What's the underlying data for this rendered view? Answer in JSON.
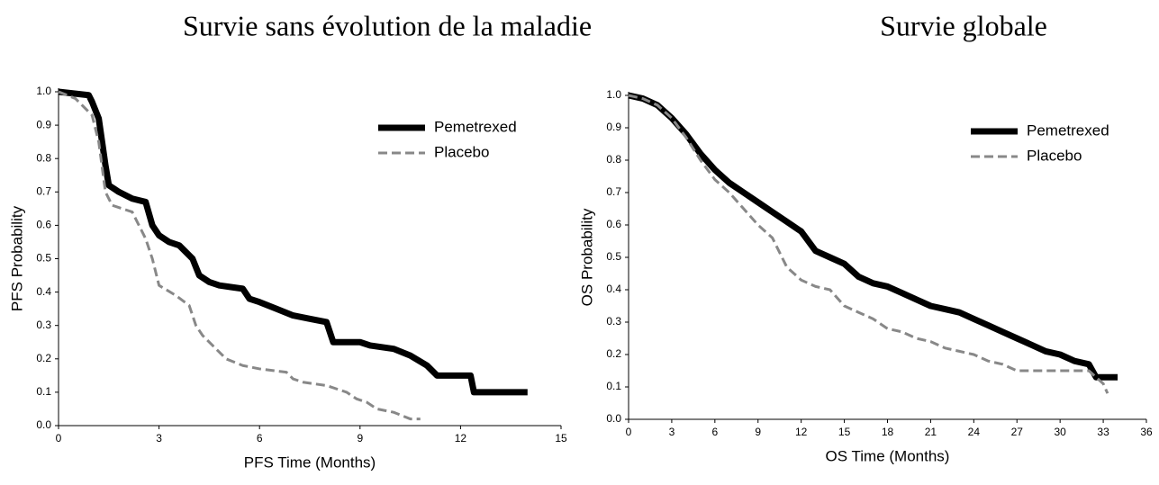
{
  "chart_data": [
    {
      "type": "line",
      "title": "Survie sans évolution de la maladie",
      "x_label": "PFS Time (Months)",
      "y_label": "PFS Probability",
      "xlim": [
        0,
        15
      ],
      "xticks": [
        0,
        3,
        6,
        9,
        12,
        15
      ],
      "ylim": [
        0,
        1
      ],
      "yticks": [
        {
          "value": 0,
          "label": "0.0"
        },
        0.1,
        0.2,
        0.3,
        0.4,
        0.5,
        0.6,
        0.7,
        0.8,
        0.9,
        {
          "value": 1,
          "label": "1.0"
        }
      ],
      "legend": "upper right",
      "series": [
        {
          "name": "Pemetrexed",
          "color": "#000000",
          "x": [
            0,
            0.9,
            1.0,
            1.2,
            1.3,
            1.4,
            1.5,
            1.8,
            2.2,
            2.6,
            2.8,
            3.0,
            3.3,
            3.6,
            4.0,
            4.2,
            4.5,
            4.8,
            5.5,
            5.7,
            6.0,
            6.5,
            7.0,
            7.5,
            8.0,
            8.2,
            9.0,
            9.3,
            10.0,
            10.5,
            11.0,
            11.3,
            12.3,
            12.4,
            14.0
          ],
          "values": [
            1.0,
            0.99,
            0.97,
            0.92,
            0.85,
            0.78,
            0.72,
            0.7,
            0.68,
            0.67,
            0.6,
            0.57,
            0.55,
            0.54,
            0.5,
            0.45,
            0.43,
            0.42,
            0.41,
            0.38,
            0.37,
            0.35,
            0.33,
            0.32,
            0.31,
            0.25,
            0.25,
            0.24,
            0.23,
            0.21,
            0.18,
            0.15,
            0.15,
            0.1,
            0.1
          ]
        },
        {
          "name": "Placebo",
          "color": "#888888",
          "x": [
            0,
            0.5,
            1.0,
            1.2,
            1.4,
            1.6,
            2.2,
            2.6,
            2.8,
            3.0,
            3.5,
            3.9,
            4.1,
            4.3,
            4.6,
            5.0,
            5.5,
            6.0,
            6.8,
            7.0,
            7.3,
            8.0,
            8.6,
            8.9,
            9.2,
            9.5,
            10.0,
            10.5,
            10.8
          ],
          "values": [
            1.0,
            0.98,
            0.93,
            0.85,
            0.7,
            0.66,
            0.64,
            0.56,
            0.5,
            0.42,
            0.39,
            0.36,
            0.3,
            0.27,
            0.24,
            0.2,
            0.18,
            0.17,
            0.16,
            0.14,
            0.13,
            0.12,
            0.1,
            0.08,
            0.07,
            0.05,
            0.04,
            0.02,
            0.02
          ]
        }
      ]
    },
    {
      "type": "line",
      "title": "Survie globale",
      "x_label": "OS Time (Months)",
      "y_label": "OS Probability",
      "xlim": [
        0,
        36
      ],
      "xticks": [
        0,
        3,
        6,
        9,
        12,
        15,
        18,
        21,
        24,
        27,
        30,
        33,
        36
      ],
      "ylim": [
        0,
        1
      ],
      "yticks": [
        {
          "value": 0,
          "label": "0.0"
        },
        0.1,
        0.2,
        0.3,
        0.4,
        0.5,
        0.6,
        0.7,
        0.8,
        0.9,
        {
          "value": 1,
          "label": "1.0"
        }
      ],
      "legend": "upper right",
      "series": [
        {
          "name": "Pemetrexed",
          "color": "#000000",
          "x": [
            0,
            1,
            2,
            3,
            4,
            5,
            6,
            7,
            8,
            9,
            10,
            11,
            12,
            13,
            14,
            15,
            16,
            17,
            18,
            19,
            20,
            21,
            22,
            23,
            24,
            25,
            26,
            27,
            28,
            29,
            30,
            31,
            32,
            32.5,
            34
          ],
          "values": [
            1.0,
            0.99,
            0.97,
            0.93,
            0.88,
            0.82,
            0.77,
            0.73,
            0.7,
            0.67,
            0.64,
            0.61,
            0.58,
            0.52,
            0.5,
            0.48,
            0.44,
            0.42,
            0.41,
            0.39,
            0.37,
            0.35,
            0.34,
            0.33,
            0.31,
            0.29,
            0.27,
            0.25,
            0.23,
            0.21,
            0.2,
            0.18,
            0.17,
            0.13,
            0.13
          ]
        },
        {
          "name": "Placebo",
          "color": "#888888",
          "x": [
            0,
            1,
            2,
            3,
            4,
            5,
            6,
            7,
            8,
            9,
            10,
            11,
            12,
            13,
            14,
            15,
            16,
            17,
            18,
            19,
            20,
            21,
            22,
            23,
            24,
            25,
            26,
            27,
            28,
            30,
            32,
            33,
            33.3
          ],
          "values": [
            1.0,
            0.99,
            0.97,
            0.93,
            0.87,
            0.8,
            0.74,
            0.7,
            0.65,
            0.6,
            0.56,
            0.47,
            0.43,
            0.41,
            0.4,
            0.35,
            0.33,
            0.31,
            0.28,
            0.27,
            0.25,
            0.24,
            0.22,
            0.21,
            0.2,
            0.18,
            0.17,
            0.15,
            0.15,
            0.15,
            0.15,
            0.11,
            0.08
          ]
        }
      ]
    }
  ]
}
